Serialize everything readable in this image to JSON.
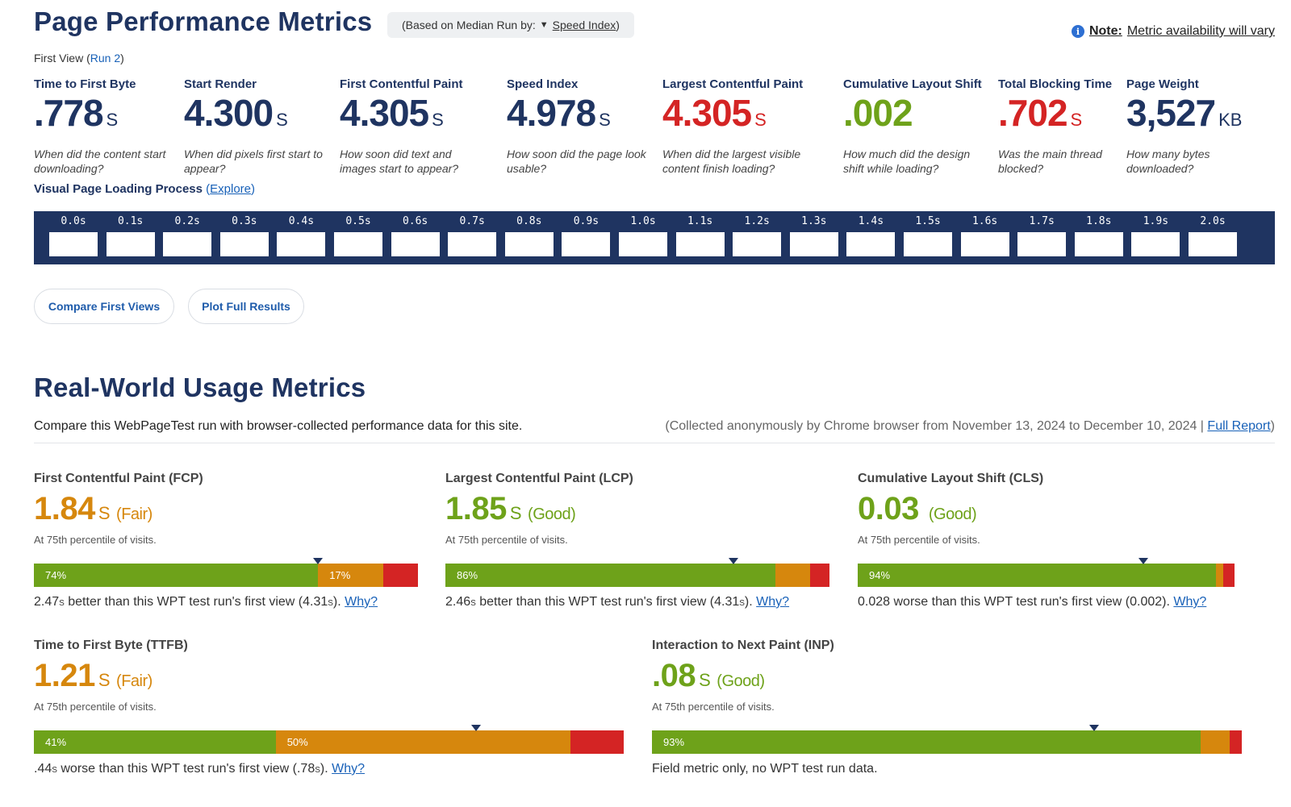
{
  "header": {
    "title": "Page Performance Metrics",
    "median_prefix": "(Based on Median Run by:",
    "median_arrow": "▼",
    "median_link": "Speed Index",
    "median_suffix": ")",
    "note_bold": "Note:",
    "note_text": "Metric availability will vary",
    "first_view_label": "First View (",
    "first_view_run": "Run 2",
    "first_view_close": ")"
  },
  "metrics": [
    {
      "label": "Time to First Byte",
      "value": ".778",
      "unit": "S",
      "desc": "When did the content start downloading?",
      "color": "#1f3461"
    },
    {
      "label": "Start Render",
      "value": "4.300",
      "unit": "S",
      "desc": "When did pixels first start to appear?",
      "color": "#1f3461"
    },
    {
      "label": "First Contentful Paint",
      "value": "4.305",
      "unit": "S",
      "desc": "How soon did text and images start to appear?",
      "color": "#1f3461"
    },
    {
      "label": "Speed Index",
      "value": "4.978",
      "unit": "S",
      "desc": "How soon did the page look usable?",
      "color": "#1f3461"
    },
    {
      "label": "Largest Contentful Paint",
      "value": "4.305",
      "unit": "S",
      "desc": "When did the largest visible content finish loading?",
      "color": "#d42424"
    },
    {
      "label": "Cumulative Layout Shift",
      "value": ".002",
      "unit": "",
      "desc": "How much did the design shift while loading?",
      "color": "#6ea21a"
    },
    {
      "label": "Total Blocking Time",
      "value": ".702",
      "unit": "S",
      "desc": "Was the main thread blocked?",
      "color": "#d42424"
    },
    {
      "label": "Page Weight",
      "value": "3,527",
      "unit": "KB",
      "desc": "How many bytes downloaded?",
      "color": "#1f3461"
    }
  ],
  "visual": {
    "title": "Visual Page Loading Process",
    "explore_open": " (",
    "explore_link": "Explore",
    "explore_close": ")",
    "frames": [
      "0.0s",
      "0.1s",
      "0.2s",
      "0.3s",
      "0.4s",
      "0.5s",
      "0.6s",
      "0.7s",
      "0.8s",
      "0.9s",
      "1.0s",
      "1.1s",
      "1.2s",
      "1.3s",
      "1.4s",
      "1.5s",
      "1.6s",
      "1.7s",
      "1.8s",
      "1.9s",
      "2.0s"
    ]
  },
  "buttons": {
    "compare": "Compare First Views",
    "plot": "Plot Full Results"
  },
  "realworld": {
    "title": "Real-World Usage Metrics",
    "desc": "Compare this WebPageTest run with browser-collected performance data for this site.",
    "collected": "(Collected anonymously by Chrome browser from November 13, 2024 to December 10, 2024 |",
    "full_report": "Full Report",
    "collected_close": ")",
    "percentile_note": "At 75th percentile of visits.",
    "why": "Why?",
    "cards": [
      {
        "label": "First Contentful Paint (FCP)",
        "value": "1.84",
        "unit": "S",
        "rating": "(Fair)",
        "color": "#d6870d",
        "good": 74,
        "fair": 17,
        "poor": 9,
        "good_label": "74%",
        "fair_label": "17%",
        "poor_label": "",
        "marker": 74,
        "cmp_value": "2.47",
        "cmp_unit": "S",
        "cmp_text": " better than this WPT test run's first view (4.31",
        "cmp_close": ").",
        "has_why": true
      },
      {
        "label": "Largest Contentful Paint (LCP)",
        "value": "1.85",
        "unit": "S",
        "rating": "(Good)",
        "color": "#6ea21a",
        "good": 86,
        "fair": 9,
        "poor": 5,
        "good_label": "86%",
        "fair_label": "",
        "poor_label": "",
        "marker": 75,
        "cmp_value": "2.46",
        "cmp_unit": "S",
        "cmp_text": " better than this WPT test run's first view (4.31",
        "cmp_close": ").",
        "has_why": true
      },
      {
        "label": "Cumulative Layout Shift (CLS)",
        "value": "0.03",
        "unit": "",
        "rating": "(Good)",
        "color": "#6ea21a",
        "good": 94,
        "fair": 2,
        "poor": 3,
        "good_label": "94%",
        "fair_label": "",
        "poor_label": "",
        "marker": 75,
        "cmp_value": "0.028",
        "cmp_unit": "",
        "cmp_text": " worse than this WPT test run's first view (0.002",
        "cmp_close": ").",
        "has_why": true
      },
      {
        "label": "Time to First Byte (TTFB)",
        "value": "1.21",
        "unit": "S",
        "rating": "(Fair)",
        "color": "#d6870d",
        "good": 41,
        "fair": 50,
        "poor": 9,
        "good_label": "41%",
        "fair_label": "50%",
        "poor_label": "",
        "marker": 75,
        "cmp_value": ".44",
        "cmp_unit": "S",
        "cmp_text": " worse than this WPT test run's first view (.78",
        "cmp_close": ").",
        "has_why": true
      },
      {
        "label": "Interaction to Next Paint (INP)",
        "value": ".08",
        "unit": "S",
        "rating": "(Good)",
        "color": "#6ea21a",
        "good": 93,
        "fair": 5,
        "poor": 2,
        "good_label": "93%",
        "fair_label": "",
        "poor_label": "",
        "marker": 75,
        "cmp_value": "",
        "cmp_unit": "",
        "cmp_text": "Field metric only, no WPT test run data.",
        "cmp_close": "",
        "has_why": false
      }
    ]
  }
}
